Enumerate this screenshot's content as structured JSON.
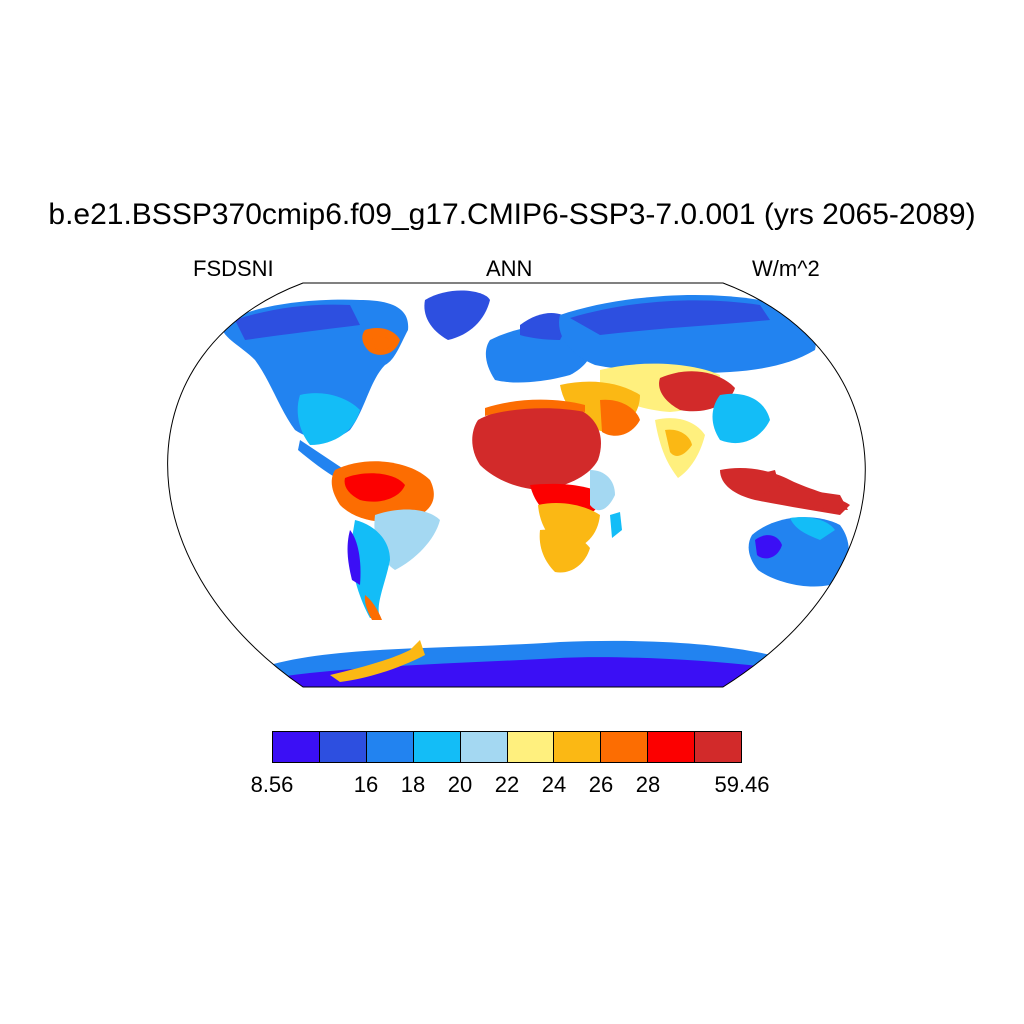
{
  "title": "b.e21.BSSP370cmip6.f09_g17.CMIP6-SSP3-7.0.001 (yrs 2065-2089)",
  "subtitle_left": "FSDSNI",
  "subtitle_center": "ANN",
  "subtitle_right": "W/m^2",
  "projection": "robinson",
  "colorbar": {
    "colors": [
      "#3b0ff5",
      "#2d4fe0",
      "#2283f0",
      "#13bdf7",
      "#a4d8f2",
      "#fff07e",
      "#fbb814",
      "#fc6d02",
      "#fc0000",
      "#d22a2a"
    ],
    "labels": [
      "8.56",
      "16",
      "18",
      "20",
      "22",
      "24",
      "26",
      "28",
      "59.46"
    ],
    "label_edges": [
      0,
      2,
      3,
      4,
      5,
      6,
      7,
      8,
      10
    ]
  },
  "regions": [
    {
      "name": "africa-north",
      "value_class": 9
    },
    {
      "name": "sahel",
      "value_class": 8
    },
    {
      "name": "africa-south",
      "value_class": 6
    },
    {
      "name": "arabia",
      "value_class": 7
    },
    {
      "name": "tibet",
      "value_class": 9
    },
    {
      "name": "siberia",
      "value_class": 2
    },
    {
      "name": "europe",
      "value_class": 2
    },
    {
      "name": "india",
      "value_class": 5
    },
    {
      "name": "se-asia",
      "value_class": 9
    },
    {
      "name": "north-america-north",
      "value_class": 2
    },
    {
      "name": "north-america-east",
      "value_class": 3
    },
    {
      "name": "hudson",
      "value_class": 7
    },
    {
      "name": "greenland",
      "value_class": 1
    },
    {
      "name": "amazon",
      "value_class": 7
    },
    {
      "name": "south-america-south",
      "value_class": 3
    },
    {
      "name": "australia",
      "value_class": 2
    },
    {
      "name": "antarctica",
      "value_class": 0
    },
    {
      "name": "antarctic-peninsula",
      "value_class": 6
    }
  ]
}
